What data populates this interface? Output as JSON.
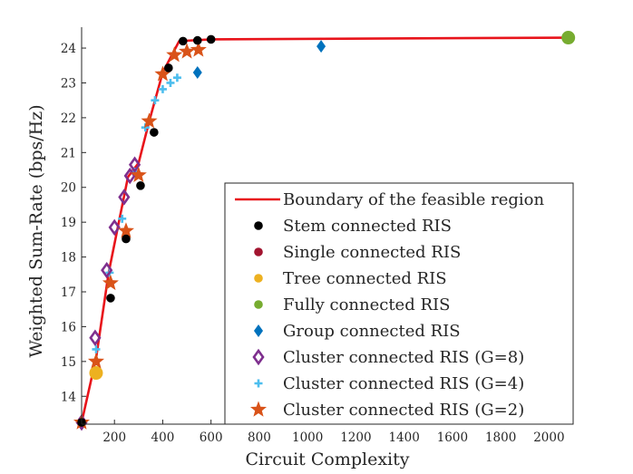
{
  "chart_data": {
    "type": "scatter",
    "title": "",
    "xlabel": "Circuit Complexity",
    "ylabel": "Weighted Sum-Rate (bps/Hz)",
    "xlim": [
      64,
      2100
    ],
    "ylim": [
      13.2,
      24.6
    ],
    "xticks": [
      200,
      400,
      600,
      800,
      1000,
      1200,
      1400,
      1600,
      1800,
      2000
    ],
    "yticks": [
      14,
      15,
      16,
      17,
      18,
      19,
      20,
      21,
      22,
      23,
      24
    ],
    "grid": false,
    "legend_position": "bottom-right",
    "series": [
      {
        "name": "Boundary of the feasible region",
        "kind": "line",
        "color": "#e8141b",
        "points": [
          [
            64,
            13.25
          ],
          [
            124,
            15.1
          ],
          [
            176,
            17.55
          ],
          [
            256,
            20.3
          ],
          [
            300,
            20.7
          ],
          [
            344,
            21.9
          ],
          [
            400,
            23.3
          ],
          [
            468,
            24.2
          ],
          [
            600,
            24.25
          ],
          [
            2080,
            24.3
          ]
        ]
      },
      {
        "name": "Stem connected RIS",
        "kind": "marker",
        "marker": "circle",
        "color": "#000000",
        "points": [
          [
            64,
            13.25
          ],
          [
            184,
            16.82
          ],
          [
            248,
            18.52
          ],
          [
            308,
            20.05
          ],
          [
            364,
            21.58
          ],
          [
            424,
            23.43
          ],
          [
            484,
            24.2
          ],
          [
            544,
            24.22
          ],
          [
            600,
            24.25
          ]
        ]
      },
      {
        "name": "Single connected RIS",
        "kind": "marker",
        "marker": "circle",
        "color": "#a2142f",
        "points": [
          [
            64,
            13.25
          ]
        ]
      },
      {
        "name": "Tree connected RIS",
        "kind": "marker",
        "marker": "circle-large",
        "color": "#edb120",
        "points": [
          [
            124,
            14.67
          ]
        ]
      },
      {
        "name": "Fully connected RIS",
        "kind": "marker",
        "marker": "circle-large",
        "color": "#77ac30",
        "points": [
          [
            2080,
            24.3
          ]
        ]
      },
      {
        "name": "Group connected RIS",
        "kind": "marker",
        "marker": "diamond",
        "color": "#0072bd",
        "points": [
          [
            544,
            23.3
          ],
          [
            1056,
            24.05
          ]
        ]
      },
      {
        "name": "Cluster connected RIS (G=8)",
        "kind": "marker",
        "marker": "diamond-open",
        "color": "#7e2f8e",
        "points": [
          [
            64,
            13.25
          ],
          [
            120,
            15.68
          ],
          [
            168,
            17.62
          ],
          [
            200,
            18.85
          ],
          [
            240,
            19.72
          ],
          [
            264,
            20.33
          ],
          [
            284,
            20.65
          ]
        ]
      },
      {
        "name": "Cluster connected RIS (G=4)",
        "kind": "marker",
        "marker": "plus",
        "color": "#4dbeee",
        "points": [
          [
            64,
            13.25
          ],
          [
            124,
            15.35
          ],
          [
            180,
            17.55
          ],
          [
            232,
            19.1
          ],
          [
            284,
            20.45
          ],
          [
            328,
            21.72
          ],
          [
            368,
            22.5
          ],
          [
            400,
            22.82
          ],
          [
            432,
            23.0
          ],
          [
            460,
            23.15
          ]
        ]
      },
      {
        "name": "Cluster connected RIS (G=2)",
        "kind": "marker",
        "marker": "star",
        "color": "#d95319",
        "points": [
          [
            64,
            13.25
          ],
          [
            124,
            15.0
          ],
          [
            184,
            17.25
          ],
          [
            248,
            18.75
          ],
          [
            300,
            20.35
          ],
          [
            344,
            21.9
          ],
          [
            400,
            23.25
          ],
          [
            448,
            23.8
          ],
          [
            500,
            23.9
          ],
          [
            548,
            23.95
          ]
        ]
      }
    ]
  }
}
